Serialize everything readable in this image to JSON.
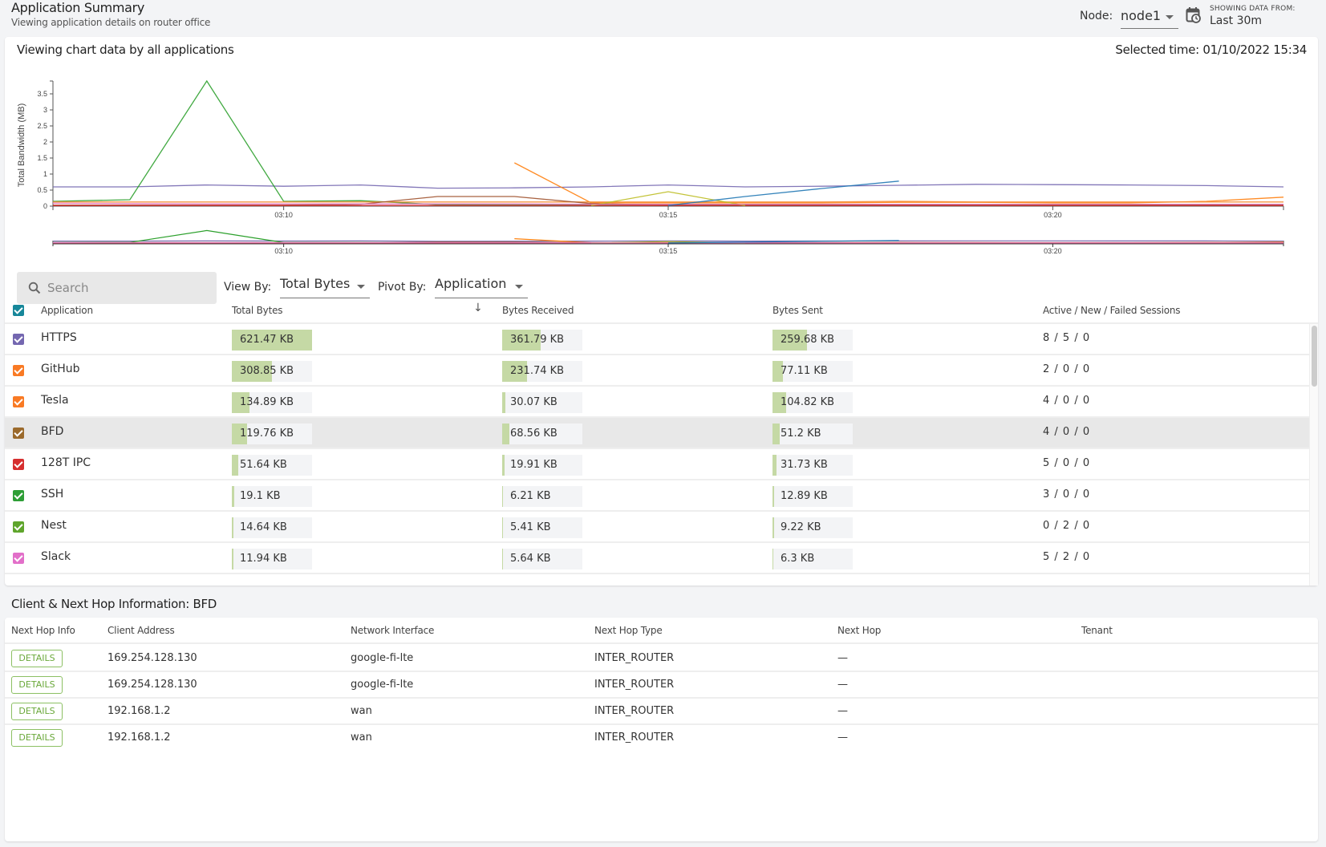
{
  "header": {
    "title": "Application Summary",
    "subtitle": "Viewing application details on router office",
    "node_label": "Node:",
    "node_value": "node1",
    "showing_label": "SHOWING DATA FROM:",
    "showing_value": "Last 30m",
    "calendar_icon": "calendar-clock-icon"
  },
  "chart_card": {
    "title": "Viewing chart data by all applications",
    "selected_time": "Selected time: 01/10/2022 15:34"
  },
  "chart_data": {
    "type": "line",
    "title": "Viewing chart data by all applications",
    "ylabel": "Total Bandwidth (MB)",
    "xlabel": "",
    "ylim": [
      0,
      3.9
    ],
    "yticks": [
      "0",
      "0.5",
      "1",
      "1.5",
      "2",
      "2.5",
      "3",
      "3.5"
    ],
    "ytick_values": [
      0,
      0.5,
      1,
      1.5,
      2,
      2.5,
      3,
      3.5
    ],
    "xticks": [
      "03:10",
      "03:15",
      "03:20"
    ],
    "xtick_minutes": [
      3,
      8,
      13
    ],
    "x_minutes": [
      0,
      1,
      2,
      3,
      4,
      5,
      6,
      7,
      8,
      9,
      10,
      11,
      12,
      13,
      14,
      15,
      16
    ],
    "grid": false,
    "legend": "none",
    "series": [
      {
        "name": "HTTPS",
        "color": "#7467b0",
        "values": [
          0.6,
          0.6,
          0.66,
          0.62,
          0.66,
          0.56,
          0.57,
          0.6,
          0.66,
          0.6,
          0.62,
          0.65,
          0.68,
          0.67,
          0.66,
          0.64,
          0.6
        ]
      },
      {
        "name": "SSH",
        "color": "#2ca02c",
        "values": [
          0.15,
          0.2,
          3.9,
          0.15,
          0.17,
          0.05,
          0.04,
          0.04,
          0.04,
          0.04,
          0.04,
          0.04,
          0.04,
          0.04,
          0.04,
          0.04,
          0.04
        ]
      },
      {
        "name": "GitHub",
        "color": "#ff7f0e",
        "values": [
          null,
          null,
          null,
          null,
          null,
          null,
          1.35,
          0.1,
          0.1,
          0.1,
          0.1,
          0.12,
          0.12,
          0.1,
          0.1,
          0.15,
          0.28
        ]
      },
      {
        "name": "Tesla",
        "color": "#f5892f",
        "values": [
          0.13,
          0.13,
          0.13,
          0.13,
          0.13,
          0.13,
          0.13,
          0.13,
          0.13,
          0.13,
          0.13,
          0.15,
          0.13,
          0.13,
          0.13,
          0.13,
          0.13
        ]
      },
      {
        "name": "BFD",
        "color": "#a0522d",
        "values": [
          0.03,
          0.03,
          0.03,
          0.03,
          0.06,
          0.3,
          0.3,
          0.08,
          0.03,
          0.03,
          0.03,
          0.03,
          0.03,
          0.03,
          0.03,
          0.03,
          0.03
        ]
      },
      {
        "name": "128T IPC",
        "color": "#d62728",
        "values": [
          0.02,
          0.02,
          0.02,
          0.02,
          0.02,
          0.02,
          0.02,
          0.02,
          0.02,
          0.02,
          0.02,
          0.02,
          0.02,
          0.02,
          0.02,
          0.02,
          0.02
        ]
      },
      {
        "name": "Nest",
        "color": "#bcbd22",
        "values": [
          null,
          null,
          null,
          null,
          null,
          null,
          null,
          0.02,
          0.45,
          0.02,
          null,
          null,
          null,
          null,
          null,
          null,
          null
        ]
      },
      {
        "name": "Slack",
        "color": "#e377c2",
        "values": [
          0.09,
          0.08,
          0.07,
          0.07,
          0.07,
          0.07,
          0.07,
          0.06,
          0.06,
          0.06,
          0.06,
          0.06,
          0.06,
          0.06,
          0.06,
          0.06,
          0.06
        ]
      },
      {
        "name": "Blue",
        "color": "#1f77b4",
        "values": [
          null,
          null,
          null,
          null,
          null,
          null,
          null,
          null,
          0.02,
          0.3,
          0.55,
          0.78,
          null,
          null,
          null,
          null,
          null
        ]
      }
    ],
    "overview_xticks": [
      "03:10",
      "03:15",
      "03:20"
    ]
  },
  "controls": {
    "search_placeholder": "Search",
    "view_by_label": "View By:",
    "view_by_value": "Total Bytes",
    "pivot_by_label": "Pivot By:",
    "pivot_by_value": "Application"
  },
  "table": {
    "header_checkbox_color": "#17879a",
    "columns": [
      "Application",
      "Total Bytes",
      "Bytes Received",
      "Bytes Sent",
      "Active / New / Failed Sessions"
    ],
    "max_kb": 621.47,
    "rows": [
      {
        "app": "HTTPS",
        "color": "#7467b0",
        "total": "621.47 KB",
        "total_kb": 621.47,
        "received": "361.79 KB",
        "received_kb": 361.79,
        "sent": "259.68 KB",
        "sent_kb": 259.68,
        "sessions": "8 / 5 / 0",
        "selected": false
      },
      {
        "app": "GitHub",
        "color": "#f97a24",
        "total": "308.85 KB",
        "total_kb": 308.85,
        "received": "231.74 KB",
        "received_kb": 231.74,
        "sent": "77.11 KB",
        "sent_kb": 77.11,
        "sessions": "2 / 0 / 0",
        "selected": false
      },
      {
        "app": "Tesla",
        "color": "#f97a24",
        "total": "134.89 KB",
        "total_kb": 134.89,
        "received": "30.07 KB",
        "received_kb": 30.07,
        "sent": "104.82 KB",
        "sent_kb": 104.82,
        "sessions": "4 / 0 / 0",
        "selected": false
      },
      {
        "app": "BFD",
        "color": "#9b6a2c",
        "total": "119.76 KB",
        "total_kb": 119.76,
        "received": "68.56 KB",
        "received_kb": 68.56,
        "sent": "51.2 KB",
        "sent_kb": 51.2,
        "sessions": "4 / 0 / 0",
        "selected": true
      },
      {
        "app": "128T IPC",
        "color": "#d62f2f",
        "total": "51.64 KB",
        "total_kb": 51.64,
        "received": "19.91 KB",
        "received_kb": 19.91,
        "sent": "31.73 KB",
        "sent_kb": 31.73,
        "sessions": "5 / 0 / 0",
        "selected": false
      },
      {
        "app": "SSH",
        "color": "#2e9e36",
        "total": "19.1 KB",
        "total_kb": 19.1,
        "received": "6.21 KB",
        "received_kb": 6.21,
        "sent": "12.89 KB",
        "sent_kb": 12.89,
        "sessions": "3 / 0 / 0",
        "selected": false
      },
      {
        "app": "Nest",
        "color": "#5fa52c",
        "total": "14.64 KB",
        "total_kb": 14.64,
        "received": "5.41 KB",
        "received_kb": 5.41,
        "sent": "9.22 KB",
        "sent_kb": 9.22,
        "sessions": "0 / 2 / 0",
        "selected": false
      },
      {
        "app": "Slack",
        "color": "#e26fc9",
        "total": "11.94 KB",
        "total_kb": 11.94,
        "received": "5.64 KB",
        "received_kb": 5.64,
        "sent": "6.3 KB",
        "sent_kb": 6.3,
        "sessions": "5 / 2 / 0",
        "selected": false
      }
    ]
  },
  "next_hop": {
    "title": "Client & Next Hop Information: BFD",
    "columns": [
      "Next Hop Info",
      "Client Address",
      "Network Interface",
      "Next Hop Type",
      "Next Hop",
      "Tenant"
    ],
    "details_label": "DETAILS",
    "rows": [
      {
        "client": "169.254.128.130",
        "interface": "google-fi-lte",
        "type": "INTER_ROUTER",
        "next_hop": "—",
        "tenant": ""
      },
      {
        "client": "169.254.128.130",
        "interface": "google-fi-lte",
        "type": "INTER_ROUTER",
        "next_hop": "—",
        "tenant": ""
      },
      {
        "client": "192.168.1.2",
        "interface": "wan",
        "type": "INTER_ROUTER",
        "next_hop": "—",
        "tenant": ""
      },
      {
        "client": "192.168.1.2",
        "interface": "wan",
        "type": "INTER_ROUTER",
        "next_hop": "—",
        "tenant": ""
      }
    ]
  }
}
